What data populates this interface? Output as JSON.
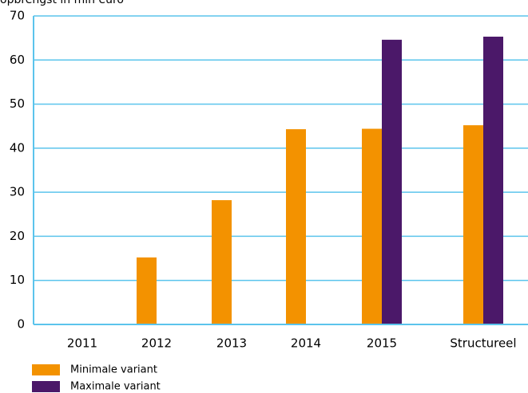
{
  "chart_data": {
    "type": "bar",
    "title": "opbrengst in mln euro",
    "categories": [
      "2011",
      "2012",
      "2013",
      "2014",
      "2015",
      "Structureel"
    ],
    "series": [
      {
        "name": "Minimale variant",
        "color": "#f39200",
        "values": [
          null,
          15.2,
          28.2,
          44.3,
          44.4,
          45.2
        ]
      },
      {
        "name": "Maximale variant",
        "color": "#4b1869",
        "values": [
          null,
          null,
          null,
          null,
          64.6,
          65.3
        ]
      }
    ],
    "ylim": [
      0,
      70
    ],
    "yticks": [
      0,
      10,
      20,
      30,
      40,
      50,
      60,
      70
    ],
    "grid": true
  }
}
